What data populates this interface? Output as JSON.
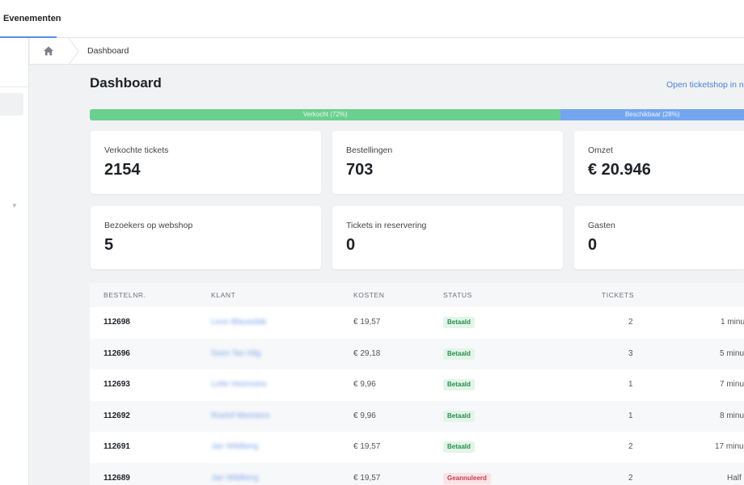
{
  "topbar": {
    "tab_label": "Evenementen"
  },
  "breadcrumb": {
    "current": "Dashboard"
  },
  "page": {
    "title": "Dashboard",
    "shop_link": "Open ticketshop in n"
  },
  "progress": {
    "sold_label": "Verkocht (72%)",
    "sold_pct": 72,
    "available_label": "Beschikbaar (28%)",
    "available_pct": 28
  },
  "stats": [
    {
      "label": "Verkochte tickets",
      "value": "2154"
    },
    {
      "label": "Bestellingen",
      "value": "703"
    },
    {
      "label": "Omzet",
      "value": "€ 20.946"
    },
    {
      "label": "Bezoekers op webshop",
      "value": "5"
    },
    {
      "label": "Tickets in reservering",
      "value": "0"
    },
    {
      "label": "Gasten",
      "value": "0"
    }
  ],
  "table": {
    "headers": {
      "nr": "BESTELNR.",
      "klant": "KLANT",
      "kosten": "KOSTEN",
      "status": "STATUS",
      "tickets": "TICKETS"
    },
    "rows": [
      {
        "nr": "112698",
        "klant": "Leon Blauwdak",
        "kosten": "€ 19,57",
        "status": "Betaald",
        "tickets": "2",
        "time": "1 minu"
      },
      {
        "nr": "112696",
        "klant": "Sven Tan Hilg",
        "kosten": "€ 29,18",
        "status": "Betaald",
        "tickets": "3",
        "time": "5 minu"
      },
      {
        "nr": "112693",
        "klant": "Lotte Heemstra",
        "kosten": "€ 9,96",
        "status": "Betaald",
        "tickets": "1",
        "time": "7 minu"
      },
      {
        "nr": "112692",
        "klant": "Roelof Meesters",
        "kosten": "€ 9,96",
        "status": "Betaald",
        "tickets": "1",
        "time": "8 minu"
      },
      {
        "nr": "112691",
        "klant": "Jan Wildberg",
        "kosten": "€ 19,57",
        "status": "Betaald",
        "tickets": "2",
        "time": "17 minu"
      },
      {
        "nr": "112689",
        "klant": "Jan Wildberg",
        "kosten": "€ 19,57",
        "status": "Geannuleerd",
        "tickets": "2",
        "time": "Half"
      }
    ]
  },
  "colors": {
    "sold": "#6bd08f",
    "available": "#74a6ef",
    "link": "#4a7fd4",
    "paid": "#2a8c4f",
    "cancelled": "#c5404f"
  }
}
